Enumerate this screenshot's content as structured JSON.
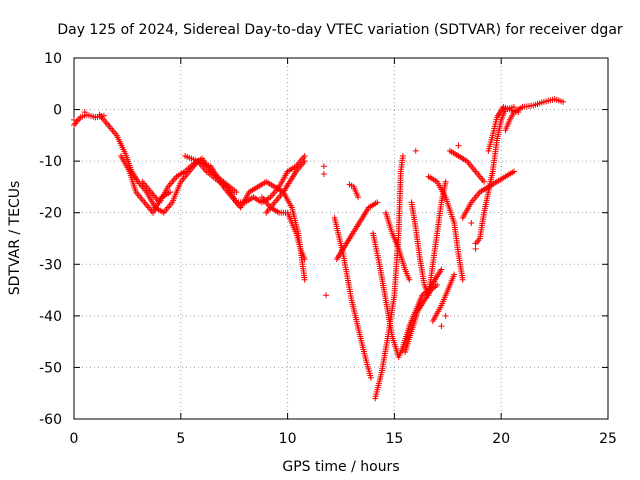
{
  "chart_data": {
    "type": "scatter",
    "title": "Day 125 of 2024, Sidereal Day-to-day VTEC variation (SDTVAR) for receiver dgar",
    "xlabel": "GPS time / hours",
    "ylabel": "SDTVAR / TECUs",
    "xlim": [
      0,
      25
    ],
    "ylim": [
      -60,
      10
    ],
    "xticks": [
      0,
      5,
      10,
      15,
      20,
      25
    ],
    "yticks": [
      10,
      0,
      -10,
      -20,
      -30,
      -40,
      -50,
      -60
    ],
    "grid": true,
    "marker": "+",
    "color": "#ff0000",
    "series": [
      {
        "tracks": [
          [
            [
              0.0,
              -3
            ],
            [
              0.3,
              -1.5
            ],
            [
              0.6,
              -1
            ],
            [
              1.0,
              -1.5
            ],
            [
              1.4,
              -1.2
            ]
          ],
          [
            [
              1.2,
              -1
            ],
            [
              1.6,
              -3
            ],
            [
              2.0,
              -5
            ],
            [
              2.4,
              -8.5
            ],
            [
              2.7,
              -12
            ],
            [
              3.0,
              -14
            ],
            [
              3.4,
              -16
            ],
            [
              3.8,
              -19
            ],
            [
              4.2,
              -20
            ],
            [
              4.6,
              -18
            ],
            [
              5.0,
              -14
            ],
            [
              5.4,
              -12
            ],
            [
              5.8,
              -10
            ],
            [
              6.2,
              -12
            ],
            [
              6.8,
              -14
            ],
            [
              7.2,
              -15
            ],
            [
              7.6,
              -18
            ],
            [
              8.0,
              -18
            ],
            [
              8.4,
              -17
            ],
            [
              8.8,
              -18
            ],
            [
              9.2,
              -17
            ],
            [
              9.6,
              -15
            ],
            [
              10.0,
              -12
            ],
            [
              10.4,
              -11
            ],
            [
              10.8,
              -9
            ]
          ],
          [
            [
              2.2,
              -9
            ],
            [
              2.6,
              -12
            ],
            [
              2.9,
              -16
            ],
            [
              3.3,
              -18
            ],
            [
              3.7,
              -20
            ],
            [
              4.1,
              -17
            ],
            [
              4.5,
              -16
            ]
          ],
          [
            [
              3.2,
              -14
            ],
            [
              3.6,
              -16
            ],
            [
              4.0,
              -18
            ],
            [
              4.4,
              -15
            ],
            [
              4.8,
              -13
            ],
            [
              5.2,
              -12
            ],
            [
              5.6,
              -10.5
            ],
            [
              6.0,
              -9.5
            ],
            [
              6.4,
              -12
            ],
            [
              7.0,
              -14
            ],
            [
              7.6,
              -16
            ]
          ],
          [
            [
              5.2,
              -9
            ],
            [
              5.8,
              -10
            ],
            [
              6.4,
              -11
            ],
            [
              7.0,
              -15
            ],
            [
              7.4,
              -17
            ],
            [
              7.8,
              -19
            ],
            [
              8.2,
              -16
            ],
            [
              8.6,
              -15
            ],
            [
              9.0,
              -14
            ],
            [
              9.4,
              -15
            ],
            [
              9.8,
              -16
            ],
            [
              10.2,
              -19
            ],
            [
              10.5,
              -24
            ],
            [
              10.7,
              -30
            ],
            [
              10.8,
              -33
            ]
          ],
          [
            [
              8.8,
              -17
            ],
            [
              9.2,
              -19
            ],
            [
              9.6,
              -20
            ],
            [
              10.0,
              -20
            ],
            [
              10.2,
              -22
            ],
            [
              10.4,
              -24
            ],
            [
              10.6,
              -27
            ],
            [
              10.8,
              -29
            ]
          ],
          [
            [
              9.0,
              -20
            ],
            [
              9.4,
              -18
            ],
            [
              9.8,
              -16
            ],
            [
              10.1,
              -14
            ],
            [
              10.4,
              -12
            ],
            [
              10.8,
              -10
            ]
          ],
          [
            [
              12.2,
              -21
            ],
            [
              12.6,
              -28
            ],
            [
              13.0,
              -37
            ],
            [
              13.4,
              -44
            ],
            [
              13.7,
              -49
            ],
            [
              13.9,
              -52
            ]
          ],
          [
            [
              12.3,
              -29
            ],
            [
              12.6,
              -27
            ],
            [
              12.9,
              -25
            ],
            [
              13.2,
              -23
            ],
            [
              13.5,
              -21
            ],
            [
              13.8,
              -19
            ],
            [
              14.2,
              -18
            ]
          ],
          [
            [
              14.0,
              -24
            ],
            [
              14.3,
              -30
            ],
            [
              14.6,
              -37
            ],
            [
              14.9,
              -44
            ],
            [
              15.2,
              -48
            ],
            [
              15.4,
              -46
            ],
            [
              15.7,
              -42
            ],
            [
              16.0,
              -39
            ],
            [
              16.3,
              -36
            ],
            [
              16.6,
              -35
            ],
            [
              16.9,
              -33
            ],
            [
              17.2,
              -31
            ]
          ],
          [
            [
              14.1,
              -56
            ],
            [
              14.4,
              -51
            ],
            [
              14.7,
              -44
            ],
            [
              15.0,
              -36
            ],
            [
              15.2,
              -24
            ],
            [
              15.3,
              -12
            ],
            [
              15.4,
              -9
            ]
          ],
          [
            [
              14.6,
              -20
            ],
            [
              14.9,
              -24
            ],
            [
              15.2,
              -27
            ],
            [
              15.5,
              -31
            ],
            [
              15.7,
              -33
            ]
          ],
          [
            [
              15.8,
              -18
            ],
            [
              16.0,
              -23
            ],
            [
              16.2,
              -29
            ],
            [
              16.4,
              -34
            ],
            [
              16.6,
              -36
            ],
            [
              16.8,
              -30
            ],
            [
              17.0,
              -24
            ],
            [
              17.2,
              -18
            ],
            [
              17.4,
              -14
            ]
          ],
          [
            [
              15.5,
              -47
            ],
            [
              15.8,
              -43
            ],
            [
              16.1,
              -39
            ],
            [
              16.4,
              -37
            ],
            [
              16.7,
              -35
            ],
            [
              17.0,
              -34
            ]
          ],
          [
            [
              16.6,
              -13
            ],
            [
              17.0,
              -14
            ],
            [
              17.4,
              -17
            ],
            [
              17.8,
              -22
            ],
            [
              18.0,
              -28
            ],
            [
              18.2,
              -33
            ]
          ],
          [
            [
              17.6,
              -8
            ],
            [
              18.0,
              -9
            ],
            [
              18.4,
              -10
            ],
            [
              18.8,
              -12
            ],
            [
              19.2,
              -14
            ]
          ],
          [
            [
              18.2,
              -21
            ],
            [
              18.6,
              -18
            ],
            [
              19.0,
              -16
            ],
            [
              19.4,
              -15
            ],
            [
              19.8,
              -14
            ],
            [
              20.2,
              -13
            ],
            [
              20.6,
              -12
            ]
          ],
          [
            [
              18.8,
              -26
            ],
            [
              19.0,
              -25
            ],
            [
              19.2,
              -20
            ],
            [
              19.4,
              -16
            ],
            [
              19.6,
              -12
            ],
            [
              19.8,
              -6
            ],
            [
              20.0,
              -2
            ],
            [
              20.2,
              0
            ],
            [
              20.6,
              0.5
            ]
          ],
          [
            [
              19.4,
              -8
            ],
            [
              19.6,
              -5
            ],
            [
              19.8,
              -1.5
            ],
            [
              20.1,
              0.5
            ],
            [
              20.4,
              0
            ],
            [
              20.8,
              -0.5
            ]
          ],
          [
            [
              20.2,
              -4
            ],
            [
              20.4,
              -2
            ],
            [
              20.6,
              -0.5
            ],
            [
              21.0,
              0.5
            ],
            [
              21.5,
              0.8
            ],
            [
              22.0,
              1.5
            ],
            [
              22.5,
              2
            ],
            [
              22.9,
              1.5
            ]
          ],
          [
            [
              12.9,
              -14.5
            ],
            [
              13.1,
              -15
            ],
            [
              13.3,
              -17
            ]
          ],
          [
            [
              16.8,
              -41
            ],
            [
              17.2,
              -38
            ],
            [
              17.8,
              -32
            ]
          ]
        ],
        "points": [
          [
            0.0,
            -2
          ],
          [
            0.5,
            -0.5
          ],
          [
            1.0,
            -1.5
          ],
          [
            11.7,
            -11
          ],
          [
            11.7,
            -12.5
          ],
          [
            11.8,
            -36
          ],
          [
            16.0,
            -8
          ],
          [
            17.2,
            -42
          ],
          [
            17.4,
            -40
          ],
          [
            18.0,
            -7
          ],
          [
            18.6,
            -22
          ],
          [
            18.8,
            -27
          ]
        ]
      }
    ]
  }
}
